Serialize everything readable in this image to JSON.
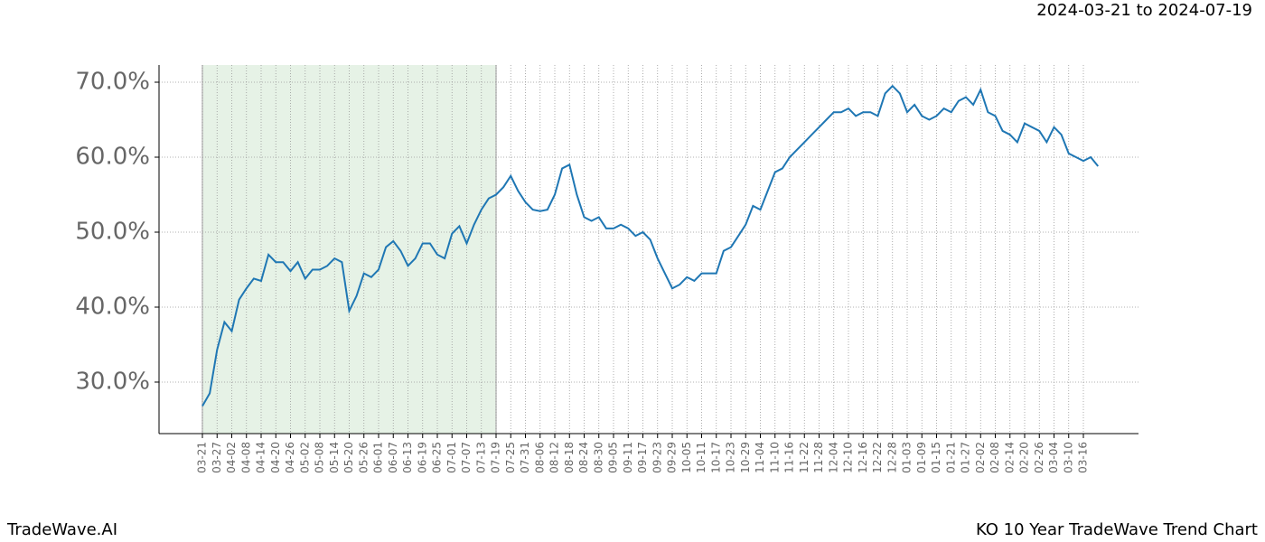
{
  "chart_data": {
    "type": "line",
    "title": "2024-03-21 to 2024-07-19",
    "categories": [
      "03-21",
      null,
      "03-27",
      null,
      "04-02",
      null,
      "04-08",
      null,
      "04-14",
      null,
      "04-20",
      null,
      "04-26",
      null,
      "05-02",
      null,
      "05-08",
      null,
      "05-14",
      null,
      "05-20",
      null,
      "05-26",
      null,
      "06-01",
      null,
      "06-07",
      null,
      "06-13",
      null,
      "06-19",
      null,
      "06-25",
      null,
      "07-01",
      null,
      "07-07",
      null,
      "07-13",
      null,
      "07-19",
      null,
      "07-25",
      null,
      "07-31",
      null,
      "08-06",
      null,
      "08-12",
      null,
      "08-18",
      null,
      "08-24",
      null,
      "08-30",
      null,
      "09-05",
      null,
      "09-11",
      null,
      "09-17",
      null,
      "09-23",
      null,
      "09-29",
      null,
      "10-05",
      null,
      "10-11",
      null,
      "10-17",
      null,
      "10-23",
      null,
      "10-29",
      null,
      "11-04",
      null,
      "11-10",
      null,
      "11-16",
      null,
      "11-22",
      null,
      "11-28",
      null,
      "12-04",
      null,
      "12-10",
      null,
      "12-16",
      null,
      "12-22",
      null,
      "12-28",
      null,
      "01-03",
      null,
      "01-09",
      null,
      "01-15",
      null,
      "01-21",
      null,
      "01-27",
      null,
      "02-02",
      null,
      "02-08",
      null,
      "02-14",
      null,
      "02-20",
      null,
      "02-26",
      null,
      "03-04",
      null,
      "03-10",
      null,
      "03-16",
      null,
      null
    ],
    "values": [
      26.8,
      28.5,
      34.3,
      38.0,
      36.8,
      41.0,
      42.5,
      43.8,
      43.5,
      47.0,
      46.0,
      46.0,
      44.8,
      46.0,
      43.8,
      45.0,
      45.0,
      45.5,
      46.5,
      46.0,
      39.5,
      41.5,
      44.5,
      44.0,
      45.0,
      48.0,
      48.8,
      47.5,
      45.5,
      46.5,
      48.5,
      48.5,
      47.0,
      46.5,
      49.8,
      50.8,
      48.5,
      51.0,
      53.0,
      54.5,
      55.0,
      56.0,
      57.5,
      55.5,
      54.0,
      53.0,
      52.8,
      53.0,
      55.0,
      58.5,
      59.0,
      55.0,
      52.0,
      51.5,
      52.0,
      50.5,
      50.5,
      51.0,
      50.5,
      49.5,
      50.0,
      49.0,
      46.5,
      44.5,
      42.5,
      43.0,
      44.0,
      43.5,
      44.5,
      44.5,
      44.5,
      47.5,
      48.0,
      49.5,
      51.0,
      53.5,
      53.0,
      55.5,
      58.0,
      58.5,
      60.0,
      61.0,
      62.0,
      63.0,
      64.0,
      65.0,
      66.0,
      66.0,
      66.5,
      65.5,
      66.0,
      66.0,
      65.5,
      68.5,
      69.5,
      68.5,
      66.0,
      67.0,
      65.5,
      65.0,
      65.5,
      66.5,
      66.0,
      67.5,
      68.0,
      67.0,
      69.0,
      66.0,
      65.5,
      63.5,
      63.0,
      62.0,
      64.5,
      64.0,
      63.5,
      62.0,
      64.0,
      63.0,
      60.5,
      60.0,
      59.5,
      60.0,
      58.8
    ],
    "color": "#1f77b4",
    "highlight_color": "#e6f2e6",
    "ylim": [
      23.13,
      72.29
    ],
    "yticks": [
      {
        "value": 30,
        "label": "30.0%"
      },
      {
        "value": 40,
        "label": "40.0%"
      },
      {
        "value": 50,
        "label": "50.0%"
      },
      {
        "value": 60,
        "label": "60.0%"
      },
      {
        "value": 70,
        "label": "70.0%"
      }
    ],
    "grid": true
  },
  "footer": {
    "left": "TradeWave.AI",
    "right": "KO 10 Year TradeWave Trend Chart"
  }
}
